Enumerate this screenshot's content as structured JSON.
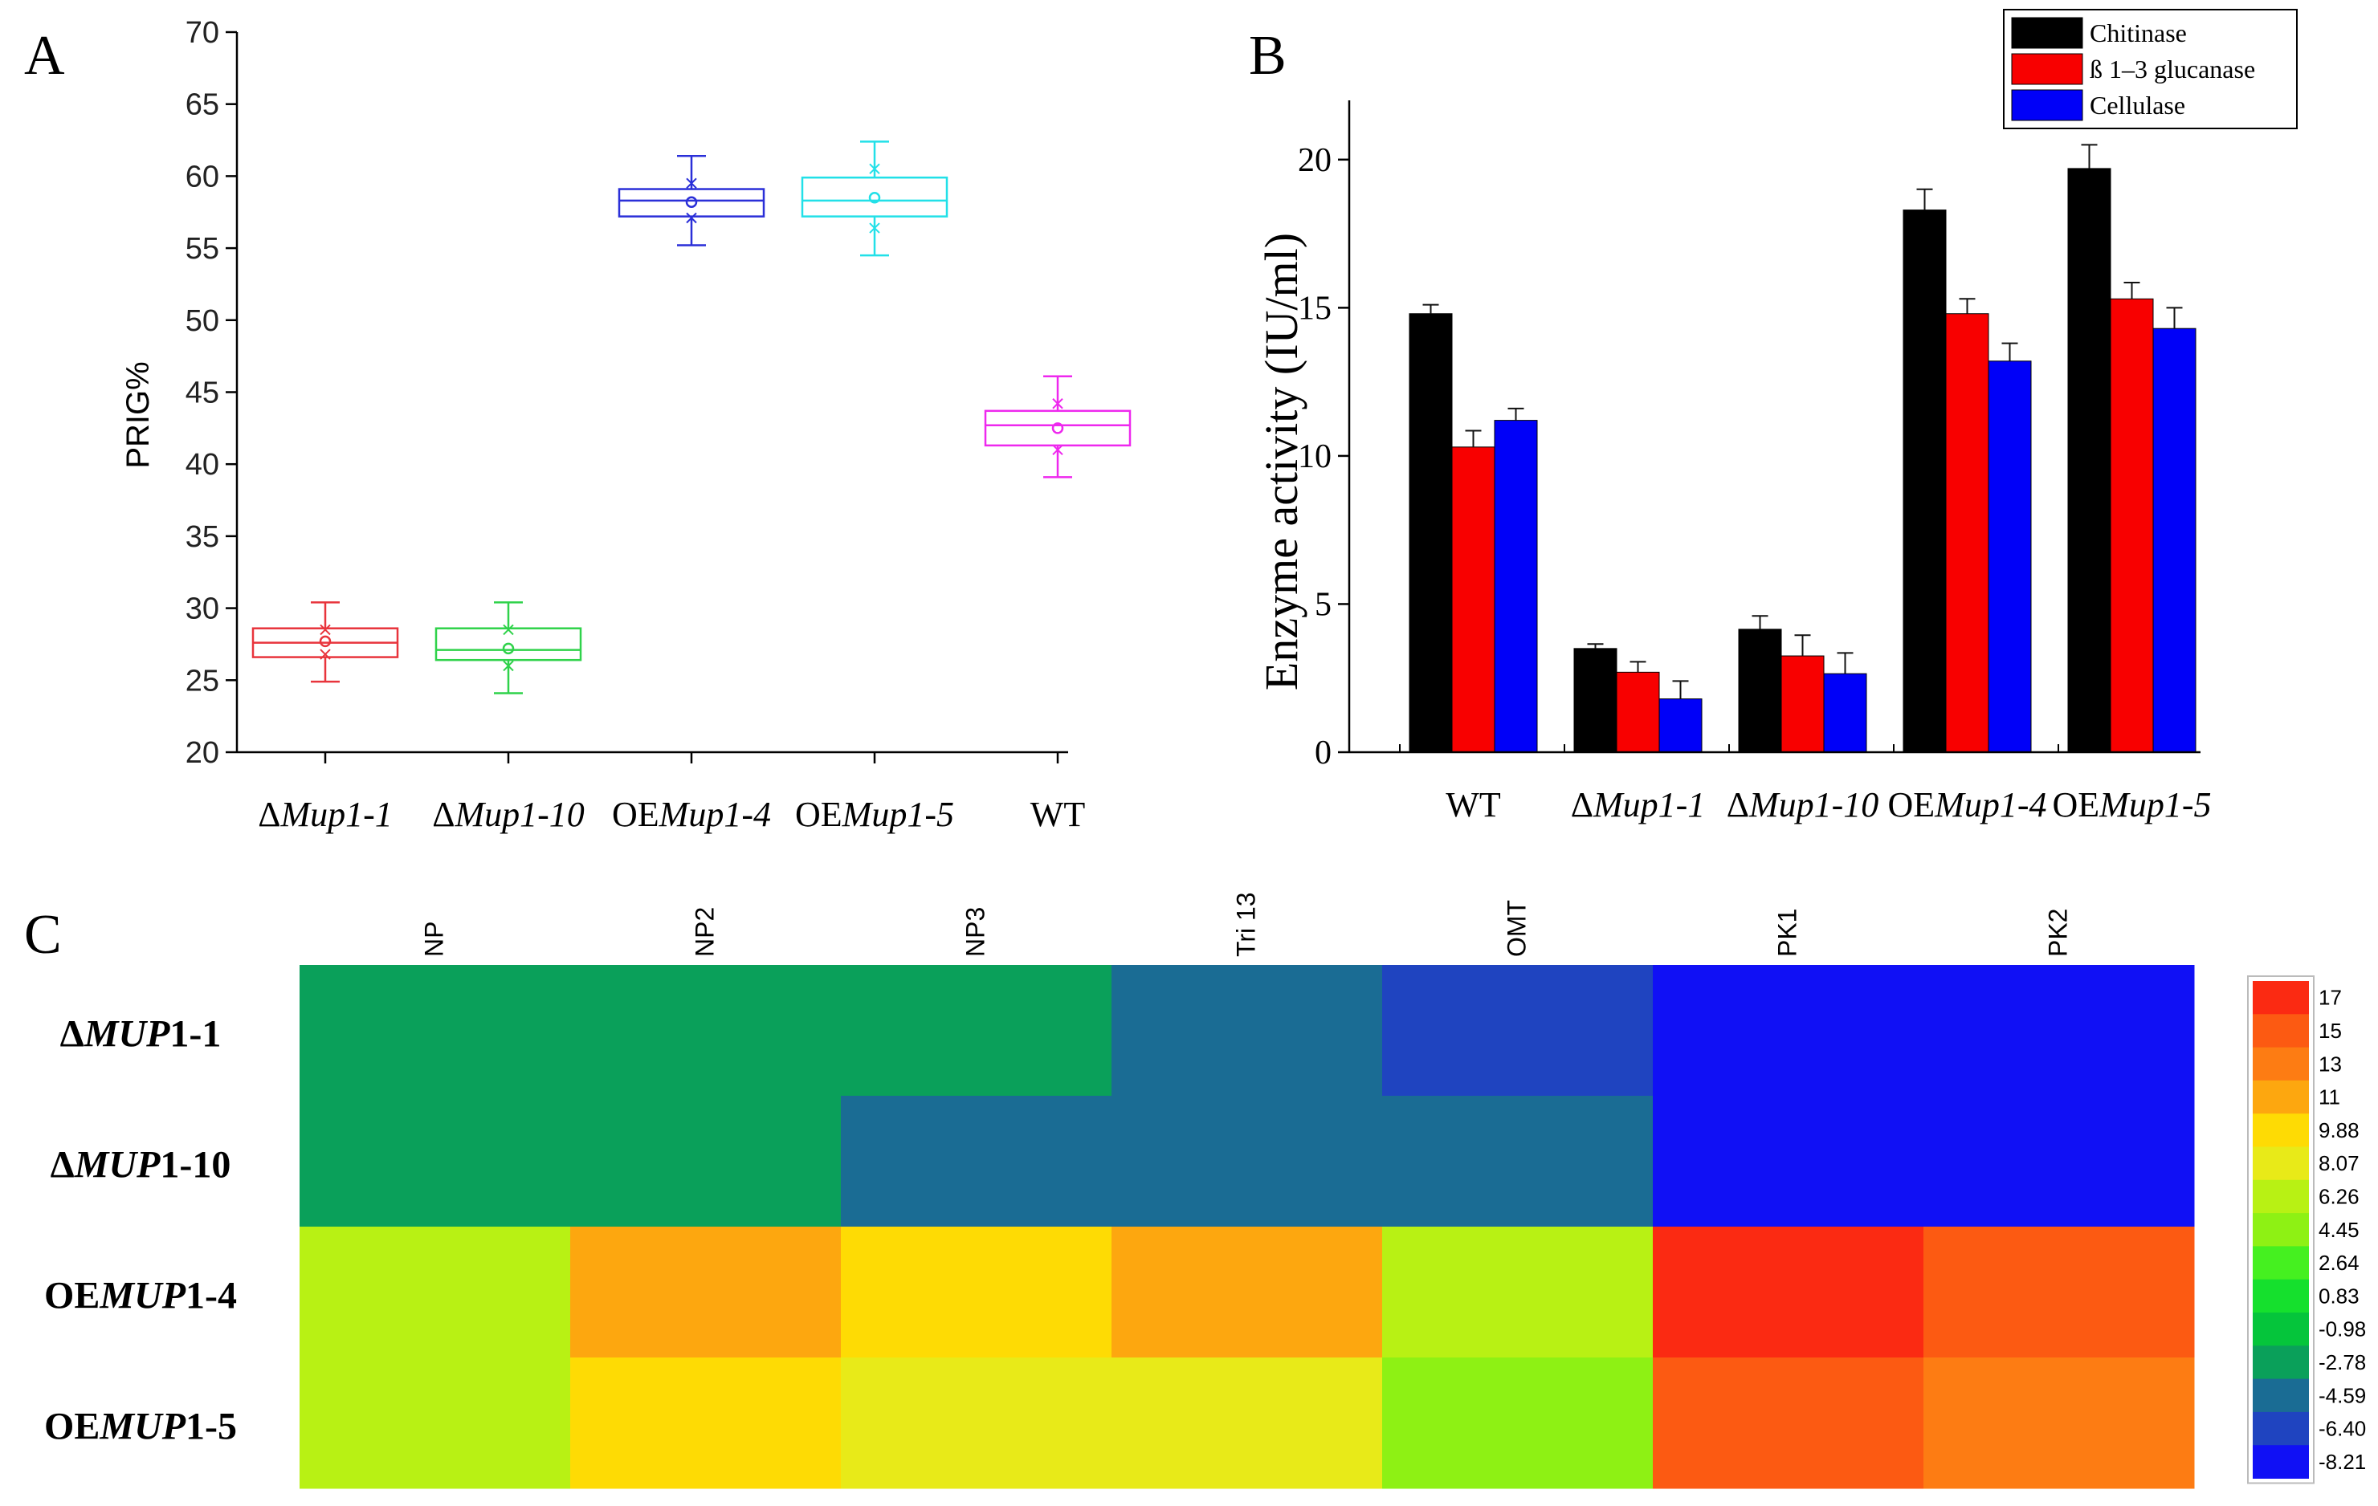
{
  "panels": {
    "a": "A",
    "b": "B",
    "c": "C"
  },
  "chart_data": [
    {
      "id": "A",
      "type": "box",
      "ylabel": "PRIG%",
      "ylim": [
        20,
        70
      ],
      "yticks": [
        20,
        25,
        30,
        35,
        40,
        45,
        50,
        55,
        60,
        65,
        70
      ],
      "categories": [
        {
          "prefix": "Δ",
          "italic": "Mup1-1",
          "label": "ΔMup1-1"
        },
        {
          "prefix": "Δ",
          "italic": "Mup1-10",
          "label": "ΔMup1-10"
        },
        {
          "prefix": "OE",
          "italic": "Mup1-4",
          "label": "OEMup1-4"
        },
        {
          "prefix": "OE",
          "italic": "Mup1-5",
          "label": "OEMup1-5"
        },
        {
          "prefix": "",
          "italic": "",
          "rest": "WT",
          "label": "WT"
        }
      ],
      "boxes": [
        {
          "whisker_low": 24.9,
          "q1": 26.6,
          "median": 27.6,
          "q3": 28.6,
          "whisker_high": 30.4,
          "mean": 27.7,
          "color": "#e8343c"
        },
        {
          "whisker_low": 24.1,
          "q1": 26.4,
          "median": 27.1,
          "q3": 28.6,
          "whisker_high": 30.4,
          "mean": 27.2,
          "color": "#2fd24a"
        },
        {
          "whisker_low": 55.2,
          "q1": 57.2,
          "median": 58.3,
          "q3": 59.1,
          "whisker_high": 61.4,
          "mean": 58.2,
          "color": "#2a2fd8"
        },
        {
          "whisker_low": 54.5,
          "q1": 57.2,
          "median": 58.3,
          "q3": 59.9,
          "whisker_high": 62.4,
          "mean": 58.5,
          "color": "#22e0e8"
        },
        {
          "whisker_low": 39.1,
          "q1": 41.3,
          "median": 42.7,
          "q3": 43.7,
          "whisker_high": 46.1,
          "mean": 42.5,
          "color": "#ee28ee"
        }
      ]
    },
    {
      "id": "B",
      "type": "bar",
      "ylabel": "Enzyme activity (IU/ml)",
      "ylim": [
        0,
        22
      ],
      "yticks": [
        0,
        5,
        10,
        15,
        20
      ],
      "categories": [
        {
          "prefix": "",
          "italic": "",
          "rest": "WT",
          "label": "WT"
        },
        {
          "prefix": "Δ",
          "italic": "Mup1-1",
          "label": "ΔMup1-1"
        },
        {
          "prefix": "Δ",
          "italic": "Mup1-10",
          "label": "ΔMup1-10"
        },
        {
          "prefix": "OE",
          "italic": "Mup1-4",
          "label": "OEMup1-4"
        },
        {
          "prefix": "OE",
          "italic": "Mup1-5",
          "label": "OEMup1-5"
        }
      ],
      "series": [
        {
          "name": "Chitinase",
          "color": "#000000",
          "values": [
            14.8,
            3.5,
            4.15,
            18.3,
            19.7
          ],
          "errors": [
            0.3,
            0.15,
            0.45,
            0.7,
            0.8
          ]
        },
        {
          "name": "ß 1–3 glucanase",
          "color": "#f80000",
          "values": [
            10.3,
            2.7,
            3.25,
            14.8,
            15.3
          ],
          "errors": [
            0.55,
            0.35,
            0.7,
            0.5,
            0.55
          ]
        },
        {
          "name": "Cellulase",
          "color": "#0000f8",
          "values": [
            11.2,
            1.8,
            2.65,
            13.2,
            14.3
          ],
          "errors": [
            0.4,
            0.6,
            0.7,
            0.6,
            0.7
          ]
        }
      ],
      "legend_position": "top-right"
    },
    {
      "id": "C",
      "type": "heatmap",
      "columns": [
        "NP",
        "NP2",
        "NP3",
        "Tri 13",
        "OMT",
        "PK1",
        "PK2"
      ],
      "rows": [
        {
          "prefix": "Δ",
          "italic": "MUP",
          "rest": "1-1",
          "label": "ΔMUP1-1"
        },
        {
          "prefix": "Δ",
          "italic": "MUP",
          "rest": "1-10",
          "label": "ΔMUP1-10"
        },
        {
          "prefix": "OE",
          "italic": "MUP",
          "rest": "1-4",
          "label": "OEMUP1-4"
        },
        {
          "prefix": "OE",
          "italic": "MUP",
          "rest": "1-5",
          "label": "OEMUP1-5"
        }
      ],
      "values": [
        [
          -2.78,
          -2.78,
          -2.78,
          -4.59,
          -6.4,
          -8.21,
          -8.21
        ],
        [
          -2.78,
          -2.78,
          -4.59,
          -4.59,
          -4.59,
          -8.21,
          -8.21
        ],
        [
          6.26,
          11,
          9.88,
          11,
          6.26,
          17,
          15
        ],
        [
          6.26,
          9.88,
          8.07,
          8.07,
          4.45,
          15,
          13
        ]
      ],
      "colorscale": {
        "labels": [
          "17",
          "15",
          "13",
          "11",
          "9.88",
          "8.07",
          "6.26",
          "4.45",
          "2.64",
          "0.83",
          "-0.98",
          "-2.78",
          "-4.59",
          "-6.40",
          "-8.21"
        ],
        "values": [
          17,
          15,
          13,
          11,
          9.88,
          8.07,
          6.26,
          4.45,
          2.64,
          0.83,
          -0.98,
          -2.78,
          -4.59,
          -6.4,
          -8.21
        ],
        "colors": [
          "#fb2a12",
          "#fc5a12",
          "#fd7c13",
          "#fda70f",
          "#fedb04",
          "#e8ea18",
          "#b8f114",
          "#8ef114",
          "#45f020",
          "#15e02d",
          "#05c53b",
          "#0aa05a",
          "#1a6c94",
          "#1f44c0",
          "#1010f5"
        ]
      }
    }
  ]
}
